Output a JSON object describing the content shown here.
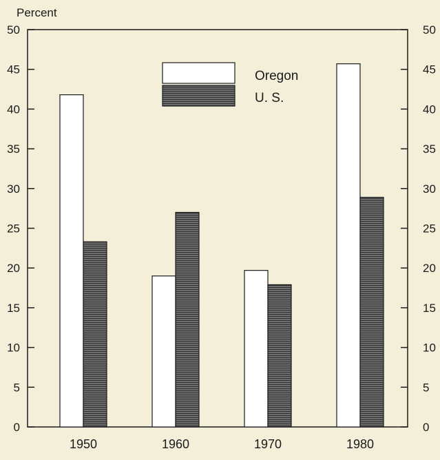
{
  "chart_data": {
    "type": "bar",
    "ylabel": "Percent",
    "categories": [
      "1950",
      "1960",
      "1970",
      "1980"
    ],
    "series": [
      {
        "name": "Oregon",
        "values": [
          41.8,
          19.0,
          19.7,
          45.7
        ]
      },
      {
        "name": "U. S.",
        "values": [
          23.3,
          27.0,
          17.9,
          28.9
        ]
      }
    ],
    "ylim": [
      0,
      50
    ],
    "yticks": [
      "0",
      "5",
      "10",
      "15",
      "20",
      "25",
      "30",
      "35",
      "40",
      "45",
      "50"
    ],
    "legend_position": "top-center",
    "grid": false,
    "colors": {
      "background": "#f3efd9",
      "oregon_fill": "#ffffff",
      "us_fill": "#5a5a5a",
      "axis": "#1a1a1a"
    }
  }
}
